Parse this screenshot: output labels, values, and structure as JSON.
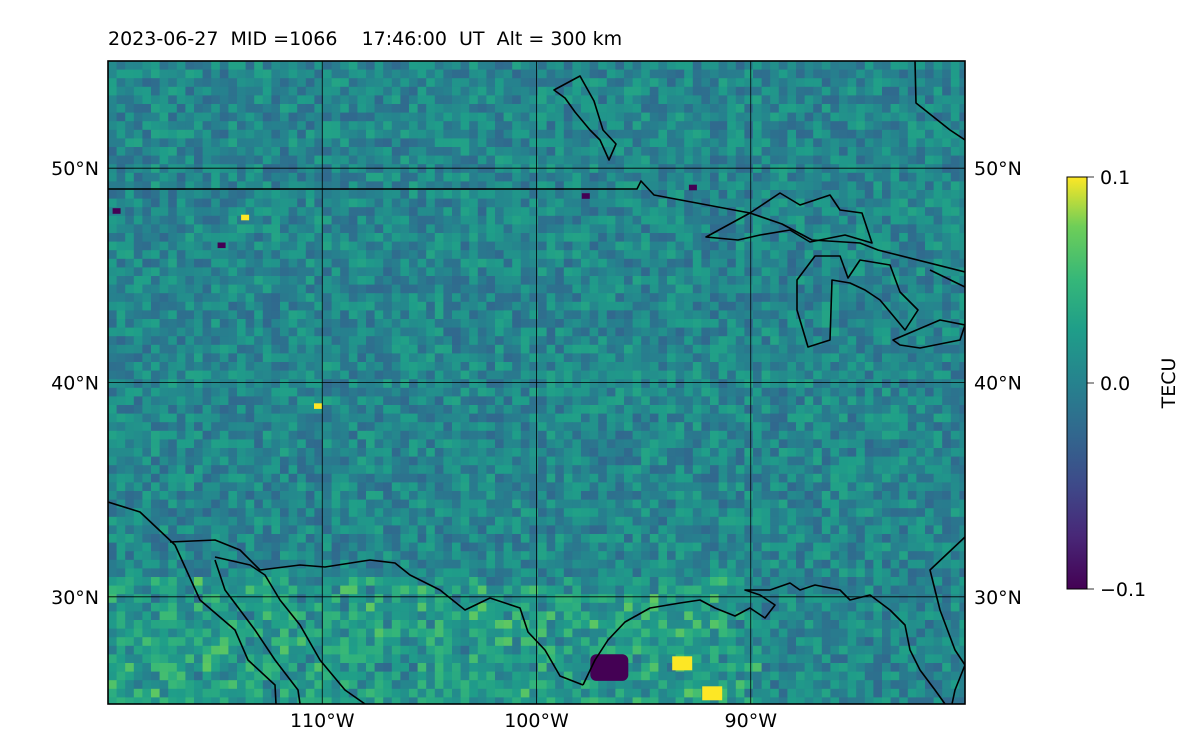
{
  "title": "2023-06-27  MID =1066    17:46:00  UT  Alt = 300 km",
  "map": {
    "lon_range": [
      -120,
      -80
    ],
    "lat_range": [
      25,
      55
    ],
    "lon_ticks": [
      {
        "value": -110,
        "label": "110°W"
      },
      {
        "value": -100,
        "label": "100°W"
      },
      {
        "value": -90,
        "label": "90°W"
      }
    ],
    "lat_ticks": [
      {
        "value": 30,
        "label": "30°N"
      },
      {
        "value": 40,
        "label": "40°N"
      },
      {
        "value": 50,
        "label": "50°N"
      }
    ],
    "colormap": "viridis",
    "field_description": "TEC perturbation",
    "notable_features": [
      {
        "lon": -96.6,
        "lat": 26.7,
        "value": -0.1
      },
      {
        "lon": -93.2,
        "lat": 26.9,
        "value": 0.1
      },
      {
        "lon": -91.8,
        "lat": 25.5,
        "value": 0.1
      },
      {
        "lon": -113.6,
        "lat": 47.7,
        "value": 0.1
      },
      {
        "lon": -110.2,
        "lat": 38.9,
        "value": 0.1
      },
      {
        "lon": -119.6,
        "lat": 48.0,
        "value": -0.1
      },
      {
        "lon": -114.7,
        "lat": 46.4,
        "value": -0.1
      },
      {
        "lon": -97.7,
        "lat": 48.7,
        "value": -0.1
      },
      {
        "lon": -92.7,
        "lat": 49.1,
        "value": -0.1
      }
    ]
  },
  "colorbar": {
    "label": "TECU",
    "min": -0.1,
    "max": 0.1,
    "ticks": [
      {
        "value": 0.1,
        "label": "0.1"
      },
      {
        "value": 0.0,
        "label": "0.0"
      },
      {
        "value": -0.1,
        "label": "−0.1"
      }
    ]
  }
}
